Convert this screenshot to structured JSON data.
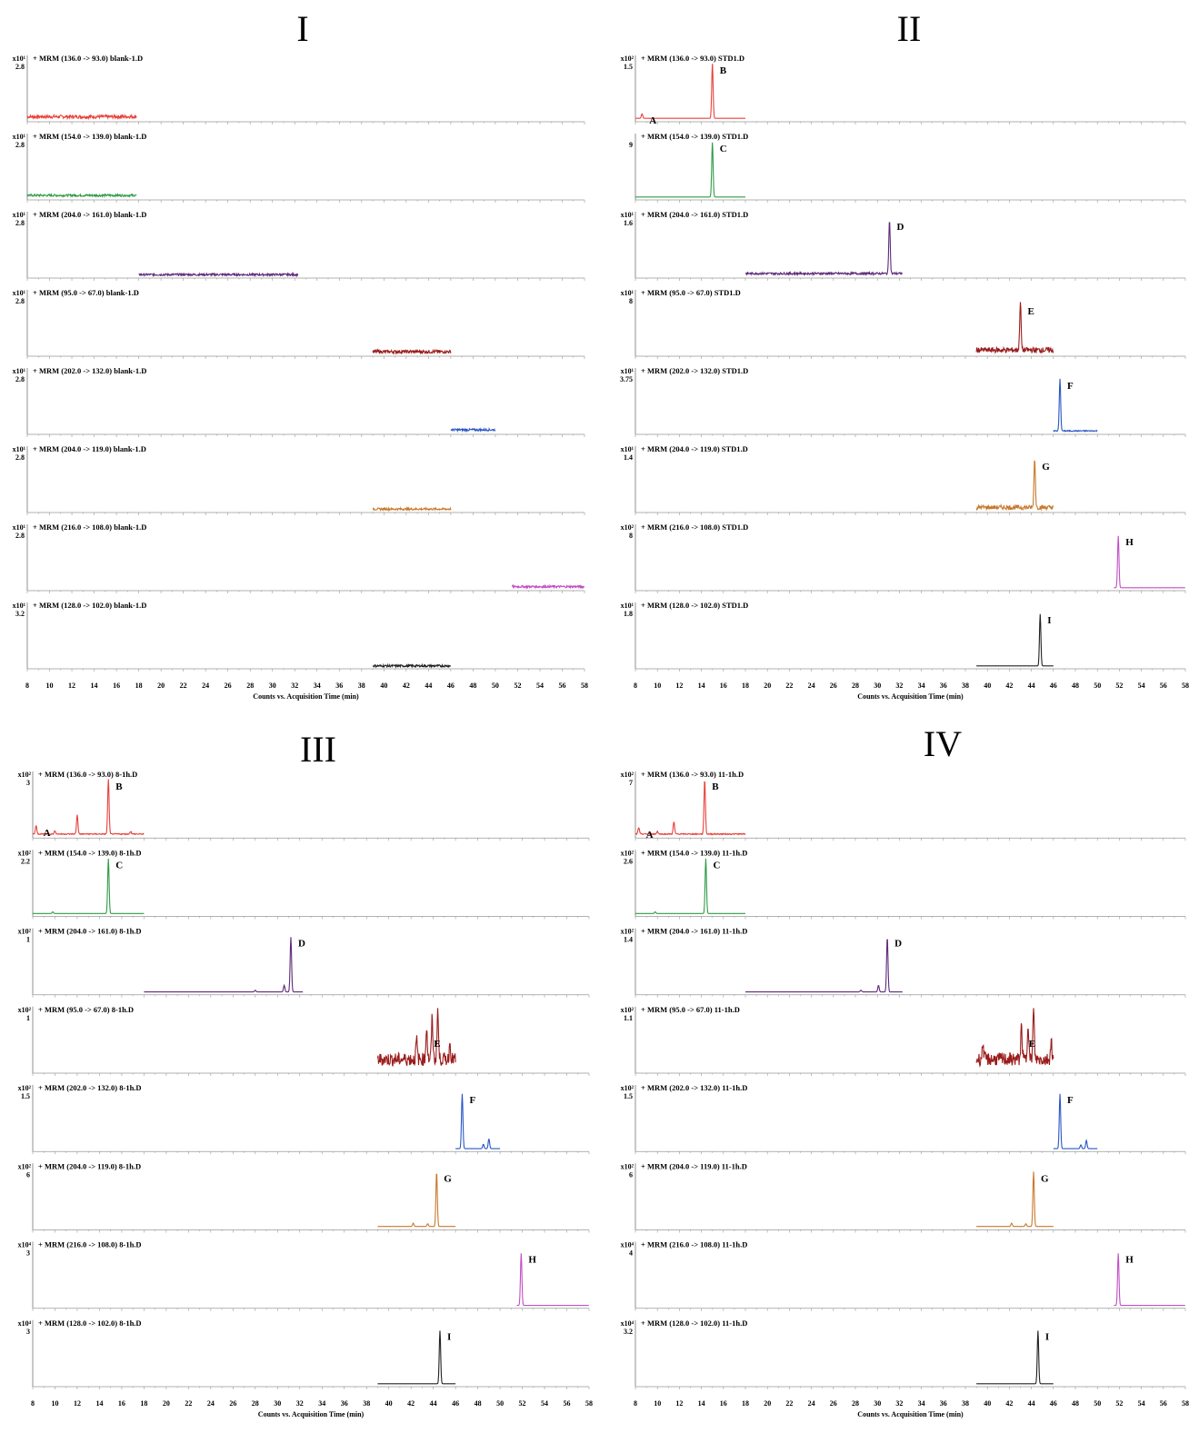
{
  "figure": {
    "x_axis_label": "Counts vs. Acquisition Time (min)",
    "x_ticks": [
      "8",
      "10",
      "12",
      "14",
      "16",
      "18",
      "20",
      "22",
      "24",
      "26",
      "28",
      "30",
      "32",
      "34",
      "36",
      "38",
      "40",
      "42",
      "44",
      "46",
      "48",
      "50",
      "52",
      "54",
      "56",
      "58"
    ]
  },
  "chart_data": [
    {
      "type": "line",
      "title": "I",
      "xlabel": "Counts vs. Acquisition Time (min)",
      "xlim": [
        8,
        58
      ],
      "traces": [
        {
          "label": "+ MRM (136.0 -> 93.0) blank-1.D",
          "y_exponent": "x10¹",
          "y_max_label": "2.8",
          "color": "#e8413a",
          "range": [
            8,
            17.8
          ],
          "peaks": [],
          "baseline": 0.06,
          "noise": 0.03
        },
        {
          "label": "+ MRM (154.0 -> 139.0) blank-1.D",
          "y_exponent": "x10¹",
          "y_max_label": "2.8",
          "color": "#2e9b47",
          "range": [
            8,
            17.8
          ],
          "peaks": [],
          "baseline": 0.05,
          "noise": 0.02
        },
        {
          "label": "+ MRM (204.0 -> 161.0) blank-1.D",
          "y_exponent": "x10¹",
          "y_max_label": "2.8",
          "color": "#5e2a7a",
          "range": [
            18,
            32.3
          ],
          "peaks": [],
          "baseline": 0.03,
          "noise": 0.02
        },
        {
          "label": "+ MRM (95.0 -> 67.0) blank-1.D",
          "y_exponent": "x10¹",
          "y_max_label": "2.8",
          "color": "#9b1c1c",
          "range": [
            39,
            46
          ],
          "peaks": [],
          "baseline": 0.05,
          "noise": 0.03
        },
        {
          "label": "+ MRM (202.0 -> 132.0) blank-1.D",
          "y_exponent": "x10¹",
          "y_max_label": "2.8",
          "color": "#2a56c6",
          "range": [
            46,
            50
          ],
          "peaks": [],
          "baseline": 0.05,
          "noise": 0.02
        },
        {
          "label": "+ MRM (204.0 -> 119.0) blank-1.D",
          "y_exponent": "x10¹",
          "y_max_label": "2.8",
          "color": "#c77a2c",
          "range": [
            39,
            46
          ],
          "peaks": [],
          "baseline": 0.03,
          "noise": 0.02
        },
        {
          "label": "+ MRM (216.0 -> 108.0) blank-1.D",
          "y_exponent": "x10¹",
          "y_max_label": "2.8",
          "color": "#c24fc4",
          "range": [
            51.5,
            58
          ],
          "peaks": [],
          "baseline": 0.04,
          "noise": 0.02
        },
        {
          "label": "+ MRM (128.0 -> 102.0) blank-1.D",
          "y_exponent": "x10¹",
          "y_max_label": "3.2",
          "color": "#222222",
          "range": [
            39,
            46
          ],
          "peaks": [],
          "baseline": 0.02,
          "noise": 0.02
        }
      ]
    },
    {
      "type": "line",
      "title": "II",
      "xlabel": "Counts vs. Acquisition Time (min)",
      "xlim": [
        8,
        58
      ],
      "traces": [
        {
          "label": "+ MRM (136.0 -> 93.0) STD1.D",
          "y_exponent": "x10²",
          "y_max_label": "1.5",
          "color": "#e8413a",
          "range": [
            8,
            18
          ],
          "baseline": 0.03,
          "noise": 0.0,
          "peaks": [
            {
              "name": "A",
              "x": 8.6,
              "h": 0.08
            },
            {
              "name": "B",
              "x": 15.0,
              "h": 1.0
            }
          ]
        },
        {
          "label": "+ MRM (154.0 -> 139.0) STD1.D",
          "y_exponent": "",
          "y_max_label": "9",
          "color": "#2e9b47",
          "range": [
            8,
            18
          ],
          "baseline": 0.02,
          "noise": 0.0,
          "peaks": [
            {
              "name": "C",
              "x": 15.0,
              "h": 1.0
            }
          ]
        },
        {
          "label": "+ MRM (204.0 -> 161.0) STD1.D",
          "y_exponent": "x10¹",
          "y_max_label": "1.6",
          "color": "#5e2a7a",
          "range": [
            18,
            32.3
          ],
          "baseline": 0.05,
          "noise": 0.02,
          "peaks": [
            {
              "name": "D",
              "x": 31.1,
              "h": 1.0
            }
          ]
        },
        {
          "label": "+ MRM (95.0 -> 67.0) STD1.D",
          "y_exponent": "x10¹",
          "y_max_label": "8",
          "color": "#9b1c1c",
          "range": [
            39,
            46
          ],
          "baseline": 0.08,
          "noise": 0.05,
          "peaks": [
            {
              "name": "E",
              "x": 43.0,
              "h": 0.88
            }
          ]
        },
        {
          "label": "+ MRM (202.0 -> 132.0) STD1.D",
          "y_exponent": "x10¹",
          "y_max_label": "3.75",
          "color": "#2a56c6",
          "range": [
            46,
            50
          ],
          "baseline": 0.03,
          "noise": 0.01,
          "peaks": [
            {
              "name": "F",
              "x": 46.6,
              "h": 0.95
            }
          ]
        },
        {
          "label": "+ MRM (204.0 -> 119.0) STD1.D",
          "y_exponent": "x10¹",
          "y_max_label": "1.4",
          "color": "#c77a2c",
          "range": [
            39,
            46
          ],
          "baseline": 0.06,
          "noise": 0.04,
          "peaks": [
            {
              "name": "G",
              "x": 44.3,
              "h": 0.9
            }
          ]
        },
        {
          "label": "+ MRM (216.0 -> 108.0) STD1.D",
          "y_exponent": "x10²",
          "y_max_label": "8",
          "color": "#c24fc4",
          "range": [
            51.5,
            58
          ],
          "baseline": 0.02,
          "noise": 0.0,
          "peaks": [
            {
              "name": "H",
              "x": 51.9,
              "h": 0.95
            }
          ]
        },
        {
          "label": "+ MRM (128.0 -> 102.0) STD1.D",
          "y_exponent": "x10¹",
          "y_max_label": "1.8",
          "color": "#222222",
          "range": [
            39,
            46
          ],
          "baseline": 0.02,
          "noise": 0.0,
          "peaks": [
            {
              "name": "I",
              "x": 44.8,
              "h": 0.95
            }
          ]
        }
      ]
    },
    {
      "type": "line",
      "title": "III",
      "xlabel": "Counts vs. Acquisition Time (min)",
      "xlim": [
        8,
        58
      ],
      "traces": [
        {
          "label": "+ MRM (136.0 -> 93.0) 8-1h.D",
          "y_exponent": "x10²",
          "y_max_label": "3",
          "color": "#e8413a",
          "range": [
            8,
            18
          ],
          "baseline": 0.04,
          "noise": 0.01,
          "peaks": [
            {
              "name": "A",
              "x": 8.3,
              "h": 0.15
            },
            {
              "x": 12.0,
              "h": 0.35
            },
            {
              "x": 10.0,
              "h": 0.06
            },
            {
              "name": "B",
              "x": 14.8,
              "h": 1.0
            },
            {
              "x": 16.8,
              "h": 0.05
            }
          ]
        },
        {
          "label": "+ MRM (154.0 -> 139.0) 8-1h.D",
          "y_exponent": "x10²",
          "y_max_label": "2.2",
          "color": "#2e9b47",
          "range": [
            8,
            18
          ],
          "baseline": 0.02,
          "noise": 0.0,
          "peaks": [
            {
              "x": 9.8,
              "h": 0.03
            },
            {
              "name": "C",
              "x": 14.8,
              "h": 1.0
            }
          ]
        },
        {
          "label": "+ MRM (204.0 -> 161.0) 8-1h.D",
          "y_exponent": "x10²",
          "y_max_label": "1",
          "color": "#5e2a7a",
          "range": [
            18,
            32.3
          ],
          "baseline": 0.02,
          "noise": 0.0,
          "peaks": [
            {
              "x": 30.6,
              "h": 0.12
            },
            {
              "name": "D",
              "x": 31.2,
              "h": 1.0
            },
            {
              "x": 28.0,
              "h": 0.03
            }
          ]
        },
        {
          "label": "+ MRM (95.0 -> 67.0) 8-1h.D",
          "y_exponent": "x10²",
          "y_max_label": "1",
          "color": "#9b1c1c",
          "range": [
            39,
            46
          ],
          "baseline": 0.22,
          "noise": 0.12,
          "peaks": [
            {
              "name": "E",
              "x": 43.4,
              "h": 0.6
            },
            {
              "x": 43.9,
              "h": 0.75
            },
            {
              "x": 44.4,
              "h": 0.9
            },
            {
              "x": 42.5,
              "h": 0.35
            },
            {
              "x": 45.5,
              "h": 0.3
            }
          ]
        },
        {
          "label": "+ MRM (202.0 -> 132.0) 8-1h.D",
          "y_exponent": "x10²",
          "y_max_label": "1.5",
          "color": "#2a56c6",
          "range": [
            46,
            50
          ],
          "baseline": 0.02,
          "noise": 0.0,
          "peaks": [
            {
              "name": "F",
              "x": 46.6,
              "h": 1.0
            },
            {
              "x": 48.5,
              "h": 0.08
            },
            {
              "x": 49.0,
              "h": 0.18
            }
          ]
        },
        {
          "label": "+ MRM (204.0 -> 119.0) 8-1h.D",
          "y_exponent": "x10²",
          "y_max_label": "6",
          "color": "#c77a2c",
          "range": [
            39,
            46
          ],
          "baseline": 0.03,
          "noise": 0.0,
          "peaks": [
            {
              "x": 42.2,
              "h": 0.06
            },
            {
              "x": 43.5,
              "h": 0.05
            },
            {
              "name": "G",
              "x": 44.3,
              "h": 1.0
            }
          ]
        },
        {
          "label": "+ MRM (216.0 -> 108.0) 8-1h.D",
          "y_exponent": "x10⁴",
          "y_max_label": "3",
          "color": "#c24fc4",
          "range": [
            51.5,
            58
          ],
          "baseline": 0.02,
          "noise": 0.0,
          "peaks": [
            {
              "name": "H",
              "x": 51.9,
              "h": 0.95
            }
          ]
        },
        {
          "label": "+ MRM (128.0 -> 102.0) 8-1h.D",
          "y_exponent": "x10⁴",
          "y_max_label": "3",
          "color": "#222222",
          "range": [
            39,
            46
          ],
          "baseline": 0.02,
          "noise": 0.0,
          "peaks": [
            {
              "name": "I",
              "x": 44.6,
              "h": 0.97
            }
          ]
        }
      ]
    },
    {
      "type": "line",
      "title": "IV",
      "xlabel": "Counts vs. Acquisition Time (min)",
      "xlim": [
        8,
        58
      ],
      "traces": [
        {
          "label": "+ MRM (136.0 -> 93.0) 11-1h.D",
          "y_exponent": "x10²",
          "y_max_label": "7",
          "color": "#e8413a",
          "range": [
            8,
            18
          ],
          "baseline": 0.04,
          "noise": 0.01,
          "peaks": [
            {
              "name": "A",
              "x": 8.3,
              "h": 0.12
            },
            {
              "x": 11.5,
              "h": 0.22
            },
            {
              "x": 10.0,
              "h": 0.05
            },
            {
              "name": "B",
              "x": 14.3,
              "h": 1.0
            }
          ]
        },
        {
          "label": "+ MRM (154.0 -> 139.0) 11-1h.D",
          "y_exponent": "x10²",
          "y_max_label": "2.6",
          "color": "#2e9b47",
          "range": [
            8,
            18
          ],
          "baseline": 0.02,
          "noise": 0.0,
          "peaks": [
            {
              "x": 9.8,
              "h": 0.03
            },
            {
              "name": "C",
              "x": 14.4,
              "h": 1.0
            }
          ]
        },
        {
          "label": "+ MRM (204.0 -> 161.0) 11-1h.D",
          "y_exponent": "x10²",
          "y_max_label": "1.4",
          "color": "#5e2a7a",
          "range": [
            18,
            32.3
          ],
          "baseline": 0.02,
          "noise": 0.0,
          "peaks": [
            {
              "x": 30.1,
              "h": 0.12
            },
            {
              "name": "D",
              "x": 30.9,
              "h": 1.0
            },
            {
              "x": 28.5,
              "h": 0.03
            }
          ]
        },
        {
          "label": "+ MRM (95.0 -> 67.0) 11-1h.D",
          "y_exponent": "x10²",
          "y_max_label": "1.1",
          "color": "#9b1c1c",
          "range": [
            39,
            46
          ],
          "baseline": 0.22,
          "noise": 0.12,
          "peaks": [
            {
              "name": "E",
              "x": 43.1,
              "h": 0.6
            },
            {
              "x": 43.7,
              "h": 0.7
            },
            {
              "x": 44.2,
              "h": 0.9
            },
            {
              "x": 39.6,
              "h": 0.3
            },
            {
              "x": 45.8,
              "h": 0.35
            }
          ]
        },
        {
          "label": "+ MRM (202.0 -> 132.0) 11-1h.D",
          "y_exponent": "x10²",
          "y_max_label": "1.5",
          "color": "#2a56c6",
          "range": [
            46,
            50
          ],
          "baseline": 0.02,
          "noise": 0.0,
          "peaks": [
            {
              "name": "F",
              "x": 46.6,
              "h": 1.0
            },
            {
              "x": 48.5,
              "h": 0.07
            },
            {
              "x": 49.0,
              "h": 0.15
            }
          ]
        },
        {
          "label": "+ MRM (204.0 -> 119.0) 11-1h.D",
          "y_exponent": "x10²",
          "y_max_label": "6",
          "color": "#c77a2c",
          "range": [
            39,
            46
          ],
          "baseline": 0.03,
          "noise": 0.0,
          "peaks": [
            {
              "x": 42.2,
              "h": 0.06
            },
            {
              "x": 43.5,
              "h": 0.05
            },
            {
              "name": "G",
              "x": 44.2,
              "h": 1.0
            }
          ]
        },
        {
          "label": "+ MRM (216.0 -> 108.0) 11-1h.D",
          "y_exponent": "x10⁴",
          "y_max_label": "4",
          "color": "#c24fc4",
          "range": [
            51.5,
            58
          ],
          "baseline": 0.02,
          "noise": 0.0,
          "peaks": [
            {
              "name": "H",
              "x": 51.9,
              "h": 0.95
            }
          ]
        },
        {
          "label": "+ MRM (128.0 -> 102.0) 11-1h.D",
          "y_exponent": "x10⁴",
          "y_max_label": "3.2",
          "color": "#222222",
          "range": [
            39,
            46
          ],
          "baseline": 0.02,
          "noise": 0.0,
          "peaks": [
            {
              "name": "I",
              "x": 44.6,
              "h": 0.97
            }
          ]
        }
      ]
    }
  ]
}
